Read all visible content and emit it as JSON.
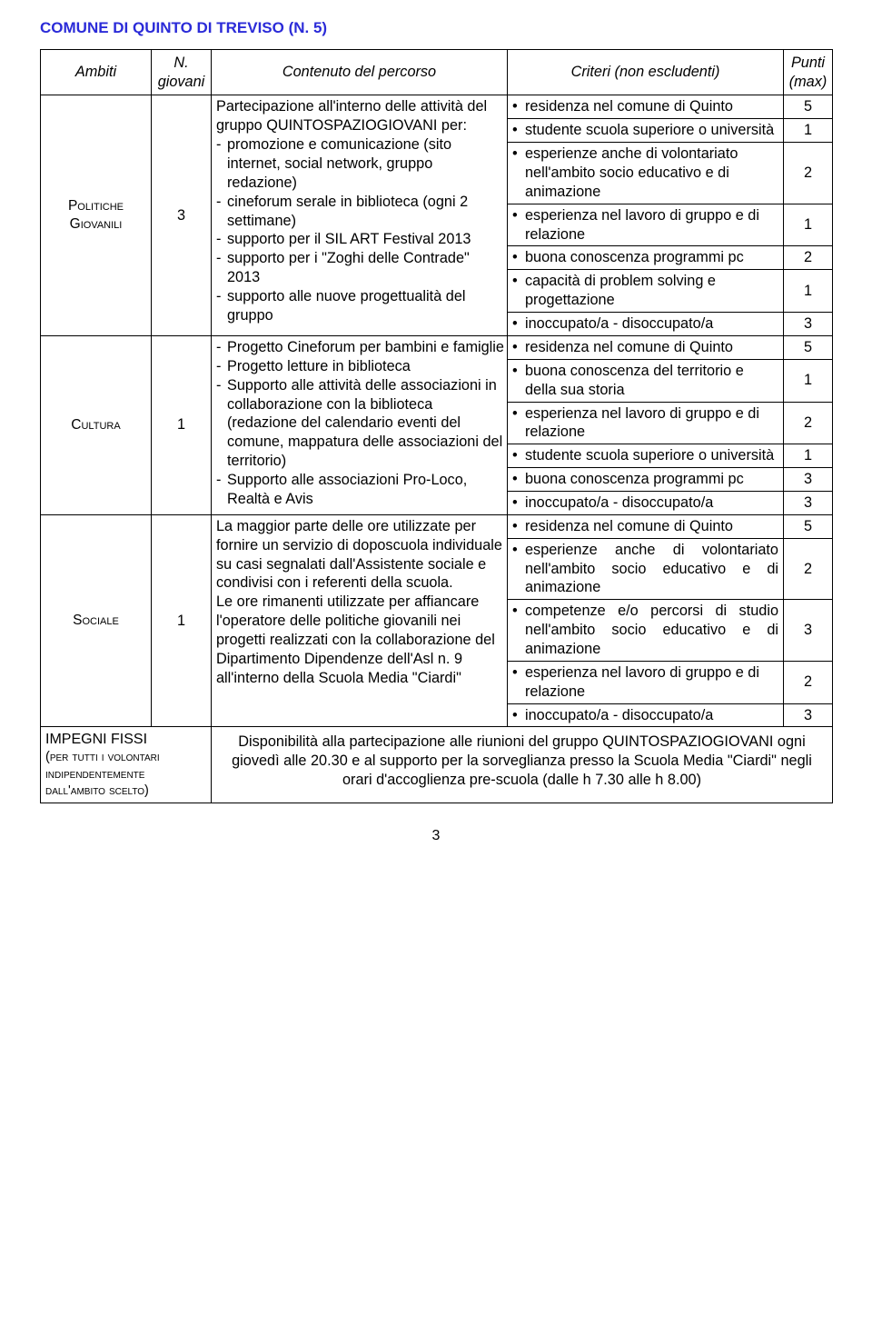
{
  "title": "COMUNE DI QUINTO DI TREVISO (N. 5)",
  "headers": {
    "ambiti": "Ambiti",
    "n_giovani": "N. giovani",
    "contenuto": "Contenuto del percorso",
    "criteri": "Criteri (non escludenti)",
    "punti": "Punti (max)"
  },
  "rows": [
    {
      "ambito_label": "Politiche Giovanili",
      "n": "3",
      "desc_intro": "Partecipazione all'interno delle attività del gruppo QUINTOSPAZIOGIOVANI per:",
      "desc_items": [
        "promozione e comunicazione (sito internet, social network, gruppo redazione)",
        "cineforum serale in biblioteca (ogni 2 settimane)",
        "supporto per il SIL ART Festival 2013",
        "supporto per i \"Zoghi delle Contrade\" 2013",
        "supporto alle nuove progettualità del gruppo"
      ],
      "criteria": [
        {
          "text": "residenza nel comune di Quinto",
          "pts": "5"
        },
        {
          "text": "studente scuola superiore o università",
          "pts": "1"
        },
        {
          "text": "esperienze anche di volontariato nell'ambito socio educativo e di animazione",
          "pts": "2"
        },
        {
          "text": "esperienza nel lavoro di gruppo e di relazione",
          "pts": "1"
        },
        {
          "text": "buona conoscenza programmi pc",
          "pts": "2"
        },
        {
          "text": "capacità di problem solving e progettazione",
          "pts": "1"
        },
        {
          "text": "inoccupato/a - disoccupato/a",
          "pts": "3"
        }
      ]
    },
    {
      "ambito_label": "Cultura",
      "n": "1",
      "desc_items_full": [
        "Progetto Cineforum per bambini e famiglie",
        "Progetto letture in biblioteca",
        "Supporto alle attività delle associazioni in collaborazione con la biblioteca (redazione del calendario eventi del comune, mappatura delle associazioni del territorio)",
        "Supporto alle associazioni Pro-Loco, Realtà e Avis"
      ],
      "criteria": [
        {
          "text": "residenza nel comune di Quinto",
          "pts": "5"
        },
        {
          "text": "buona conoscenza del territorio e della sua storia",
          "pts": "1"
        },
        {
          "text": "esperienza nel lavoro di gruppo e di relazione",
          "pts": "2"
        },
        {
          "text": "studente scuola superiore o università",
          "pts": "1"
        },
        {
          "text": "buona conoscenza programmi pc",
          "pts": "3"
        },
        {
          "text": "inoccupato/a - disoccupato/a",
          "pts": "3"
        }
      ]
    },
    {
      "ambito_label": "Sociale",
      "n": "1",
      "desc_para": "La maggior parte delle ore utilizzate per fornire un servizio di doposcuola individuale su casi segnalati dall'Assistente sociale e condivisi con i referenti della scuola.\nLe ore rimanenti utilizzate per affiancare l'operatore delle politiche giovanili nei progetti realizzati con la collaborazione del Dipartimento Dipendenze dell'Asl n. 9 all'interno della Scuola Media \"Ciardi\"",
      "criteria": [
        {
          "text": "residenza nel comune di Quinto",
          "pts": "5"
        },
        {
          "text": "esperienze anche di volontariato nell'ambito socio educativo e di animazione",
          "pts": "2"
        },
        {
          "text": "competenze e/o percorsi di studio nell'ambito socio educativo e di animazione",
          "pts": "3"
        },
        {
          "text": "esperienza nel lavoro di gruppo e di relazione",
          "pts": "2"
        },
        {
          "text": "inoccupato/a - disoccupato/a",
          "pts": "3"
        }
      ]
    }
  ],
  "impegni": {
    "label_big": "IMPEGNI FISSI",
    "label_small": "(per tutti i volontari indipendentemente dall'ambito scelto)",
    "text": "Disponibilità alla partecipazione alle riunioni del gruppo QUINTOSPAZIOGIOVANI ogni giovedì alle 20.30 e al supporto per la sorveglianza presso la Scuola Media \"Ciardi\" negli orari d'accoglienza pre-scuola (dalle h 7.30 alle h 8.00)"
  },
  "page_number": "3"
}
